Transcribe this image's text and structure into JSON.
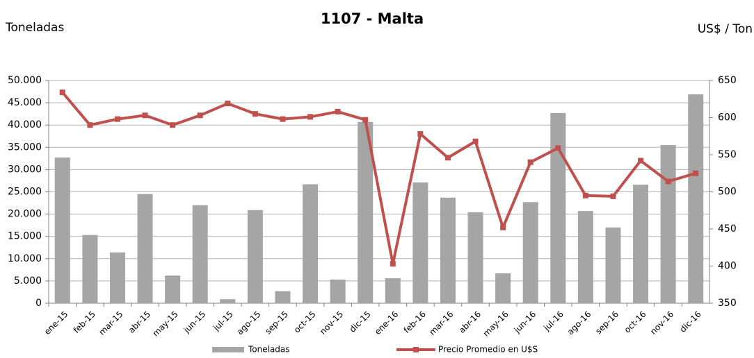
{
  "chart_data": {
    "type": "bar-line",
    "title": "1107 - Malta",
    "y_label": "Toneladas",
    "y2_label": "US$ / Ton",
    "categories": [
      "ene-15",
      "feb-15",
      "mar-15",
      "abr-15",
      "may-15",
      "jun-15",
      "jul-15",
      "ago-15",
      "sep-15",
      "oct-15",
      "nov-15",
      "dic-15",
      "ene-16",
      "feb-16",
      "mar-16",
      "abr-16",
      "may-16",
      "jun-16",
      "jul-16",
      "ago-16",
      "sep-16",
      "oct-16",
      "nov-16",
      "dic-16"
    ],
    "series": [
      {
        "name": "Toneladas",
        "type": "bar",
        "color": "#a5a5a5",
        "axis": "y",
        "values": [
          32700,
          15300,
          11400,
          24500,
          6200,
          22000,
          900,
          20900,
          2700,
          26700,
          5300,
          40700,
          5600,
          27100,
          23700,
          20400,
          6700,
          22700,
          42700,
          20700,
          17000,
          26600,
          35500,
          46900
        ]
      },
      {
        "name": "Precio Promedio en  U$S",
        "type": "line",
        "color": "#c0504d",
        "axis": "y2",
        "values": [
          634,
          590,
          598,
          603,
          590,
          603,
          619,
          605,
          598,
          601,
          608,
          597,
          403,
          578,
          546,
          568,
          452,
          540,
          559,
          495,
          494,
          542,
          514,
          525
        ]
      }
    ],
    "ylim": [
      0,
      50000
    ],
    "yticks": [
      0,
      {
        "value": 5000,
        "label": "5.000"
      },
      {
        "value": 10000,
        "label": "10.000"
      },
      {
        "value": 15000,
        "label": "15.000"
      },
      {
        "value": 20000,
        "label": "20.000"
      },
      {
        "value": 25000,
        "label": "25.000"
      },
      {
        "value": 30000,
        "label": "30.000"
      },
      {
        "value": 35000,
        "label": "35.000"
      },
      {
        "value": 40000,
        "label": "40.000"
      },
      {
        "value": 45000,
        "label": "45.000"
      },
      {
        "value": 50000,
        "label": "50.000"
      }
    ],
    "y2lim": [
      350,
      650
    ],
    "y2ticks": [
      350,
      400,
      450,
      500,
      550,
      600,
      650
    ],
    "grid": true
  }
}
